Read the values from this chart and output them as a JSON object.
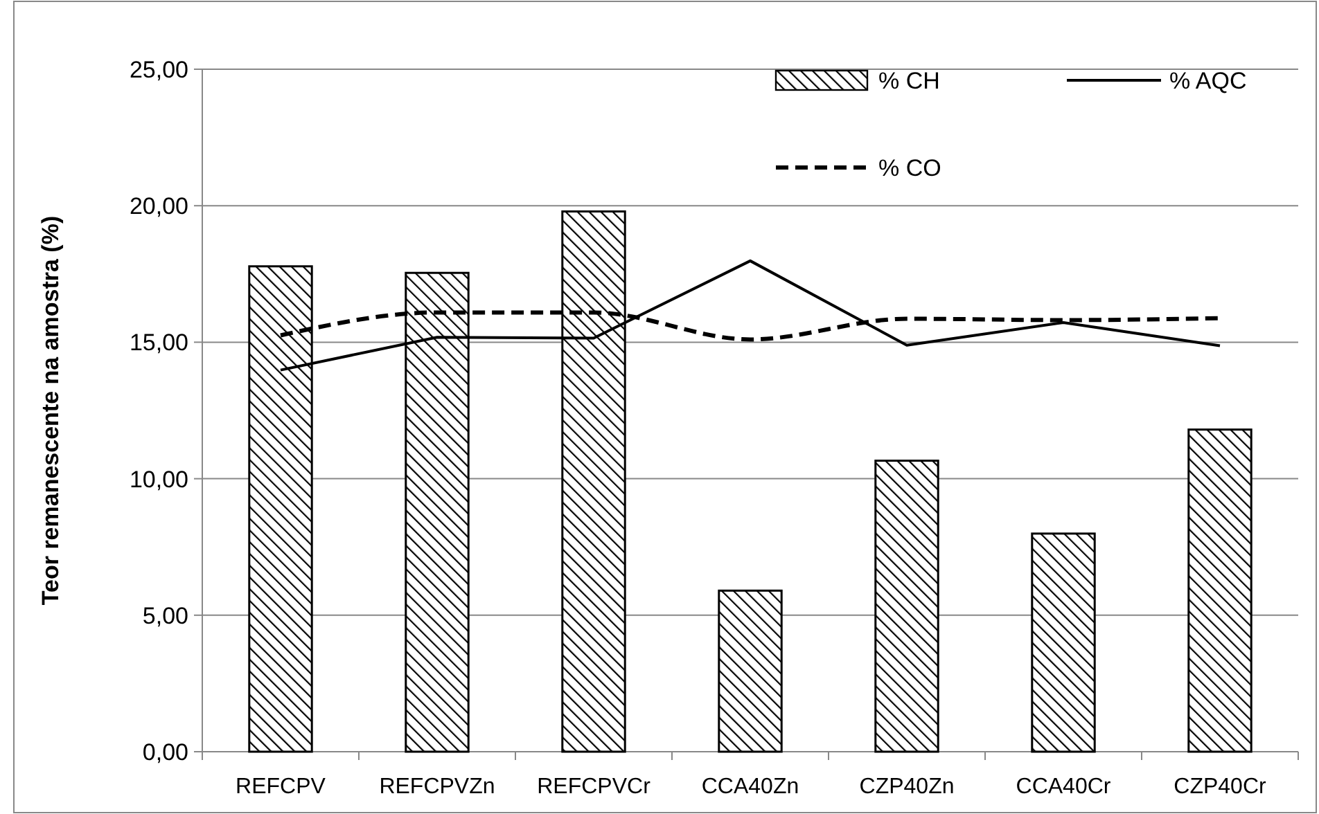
{
  "chart_data": {
    "type": "bar",
    "ylabel": "Teor remanescente na amostra (%)",
    "categories": [
      "REFCPV",
      "REFCPVZn",
      "REFCPVCr",
      "CCA40Zn",
      "CZP40Zn",
      "CCA40Cr",
      "CZP40Cr"
    ],
    "series": [
      {
        "name": "% CH",
        "color": "#000000",
        "values": [
          17.78,
          17.54,
          19.79,
          5.9,
          10.66,
          7.99,
          11.8
        ]
      },
      {
        "name": "% AQC",
        "type": "line",
        "color": "#000000",
        "line_style": "solid",
        "values": [
          13.98,
          15.18,
          15.15,
          17.98,
          14.89,
          15.72,
          14.87
        ]
      },
      {
        "name": "% CO",
        "type": "line",
        "color": "#000000",
        "line_style": "dashed",
        "values": [
          15.25,
          16.09,
          16.09,
          15.1,
          15.86,
          15.81,
          15.88
        ]
      }
    ],
    "ylim": [
      0,
      25
    ],
    "yticks": [
      {
        "value": 0,
        "label": "0,00"
      },
      {
        "value": 5,
        "label": "5,00"
      },
      {
        "value": 10,
        "label": "10,00"
      },
      {
        "value": 15,
        "label": "15,00"
      },
      {
        "value": 20,
        "label": "20,00"
      },
      {
        "value": 25,
        "label": "25,00"
      }
    ],
    "grid": "y",
    "legend": "top right"
  }
}
